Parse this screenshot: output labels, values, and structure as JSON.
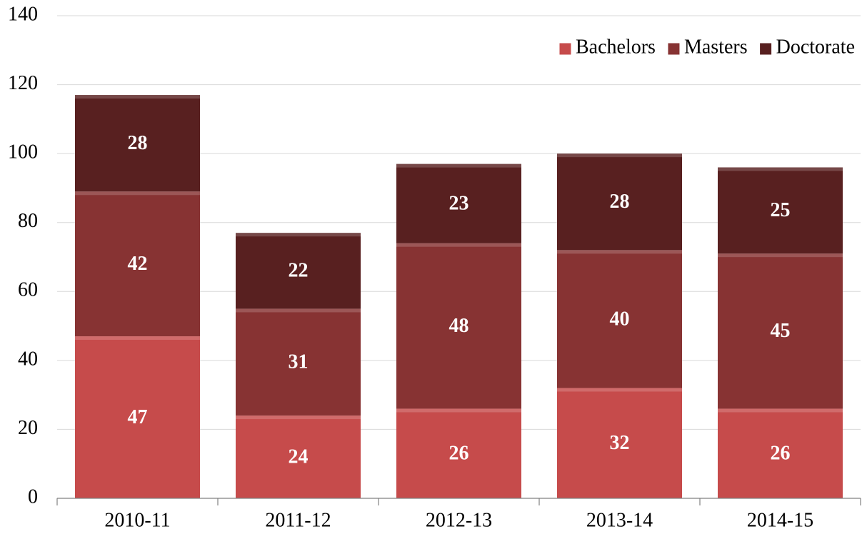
{
  "chart_data": {
    "type": "stacked_bar",
    "categories": [
      "2010-11",
      "2011-12",
      "2012-13",
      "2013-14",
      "2014-15"
    ],
    "series": [
      {
        "name": "Bachelors",
        "color": "#c64b4b",
        "values": [
          47,
          24,
          26,
          32,
          26
        ]
      },
      {
        "name": "Masters",
        "color": "#873333",
        "values": [
          42,
          31,
          48,
          40,
          45
        ]
      },
      {
        "name": "Doctorate",
        "color": "#582020",
        "values": [
          28,
          22,
          23,
          28,
          25
        ]
      }
    ],
    "ylim": [
      0,
      140
    ],
    "yticks": [
      0,
      20,
      40,
      60,
      80,
      100,
      120,
      140
    ],
    "grid": true,
    "legend": "top-right"
  }
}
